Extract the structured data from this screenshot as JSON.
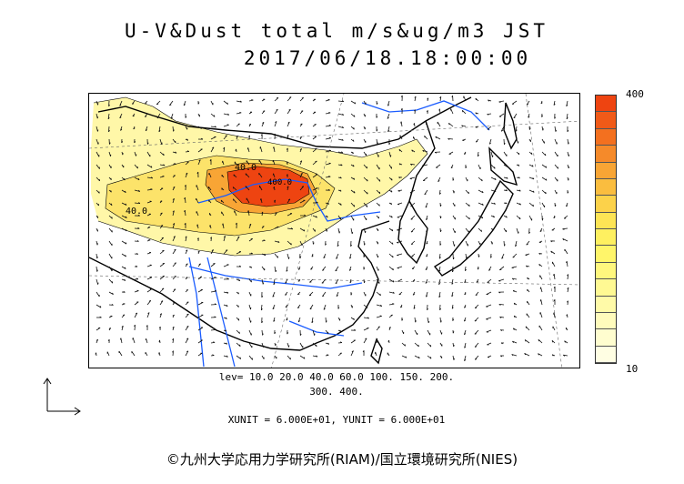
{
  "header": {
    "title": "U-V&Dust total m/s&ug/m3 JST",
    "timestamp": "2017/06/18.18:00:00"
  },
  "colorbar": {
    "max_label": "400",
    "min_label": "10",
    "colors": [
      "#ee4411",
      "#f05a18",
      "#f3701f",
      "#f58a2a",
      "#f8a535",
      "#fabd3f",
      "#fcd24a",
      "#fde455",
      "#fef060",
      "#fff56a",
      "#fff77e",
      "#fff993",
      "#fffaa8",
      "#fffbbc",
      "#fffdcf",
      "#fffee3"
    ]
  },
  "legend": {
    "levels_line1": "lev= 10.0 20.0 40.0 60.0 100. 150. 200.",
    "levels_line2": "300. 400.",
    "units": "XUNIT = 6.000E+01, YUNIT = 6.000E+01"
  },
  "map": {
    "contour_labels": [
      "40.0",
      "40.0",
      "400.0"
    ],
    "colors": {
      "coast": "#000000",
      "rivers": "#1a5cff",
      "dust_low": "#fff7a8",
      "dust_mid": "#fce36a",
      "dust_orange": "#f58a2a",
      "dust_high": "#ee4411"
    }
  },
  "footer": {
    "copyright": "©九州大学応用力学研究所(RIAM)/国立環境研究所(NIES)"
  }
}
